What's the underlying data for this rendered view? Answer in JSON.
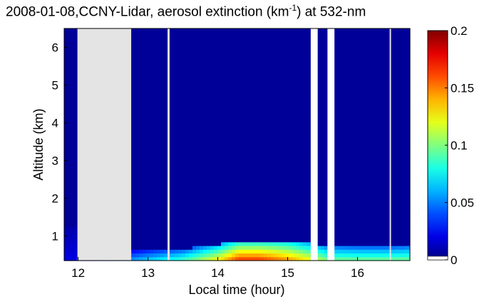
{
  "title_parts": {
    "before": "2008-01-08,CCNY-Lidar, aerosol extinction (km",
    "sup": "-1",
    "after": ") at 532-nm"
  },
  "chart_data": {
    "type": "heatmap",
    "title": "2008-01-08,CCNY-Lidar, aerosol extinction (km^-1) at 532-nm",
    "xlabel": "Local time (hour)",
    "ylabel": "Altitude (km)",
    "xlim": [
      11.8,
      16.75
    ],
    "ylim": [
      0.35,
      6.5
    ],
    "xticks": [
      12,
      13,
      14,
      15,
      16
    ],
    "yticks": [
      1,
      2,
      3,
      4,
      5,
      6
    ],
    "colorbar": {
      "colormap": "jet",
      "range": [
        0,
        0.2
      ],
      "ticks": [
        0,
        0.05,
        0.1,
        0.15,
        0.2
      ],
      "tick_labels": [
        "0",
        "0.05",
        "0.1",
        "0.15",
        "0.2"
      ],
      "missing_color": "#ffffff"
    },
    "data_gaps": [
      {
        "start": 11.99,
        "end": 12.76,
        "color": "#e4e4e4"
      },
      {
        "start": 13.28,
        "end": 13.31,
        "color": "#e4e4e4"
      },
      {
        "start": 15.33,
        "end": 15.43,
        "color": "#ffffff"
      },
      {
        "start": 15.57,
        "end": 15.67,
        "color": "#ffffff"
      },
      {
        "start": 16.46,
        "end": 16.48,
        "color": "#e4e4e4"
      }
    ],
    "background_extinction": 0.005,
    "boundary_layer": {
      "description": "aerosol layer top altitude (km) vs time, peak extinction near surface",
      "times": [
        11.8,
        12.0,
        12.8,
        13.0,
        13.5,
        14.0,
        14.3,
        14.6,
        15.0,
        15.3,
        15.6,
        16.0,
        16.5,
        16.75
      ],
      "top_km": [
        1.2,
        1.2,
        0.6,
        0.62,
        0.66,
        0.78,
        0.85,
        0.85,
        0.88,
        0.82,
        0.75,
        0.72,
        0.72,
        0.75
      ],
      "peak_extinction": [
        0.02,
        0.02,
        0.06,
        0.07,
        0.09,
        0.13,
        0.17,
        0.17,
        0.15,
        0.13,
        0.1,
        0.1,
        0.1,
        0.1
      ]
    },
    "legend": "colorbar-right"
  }
}
